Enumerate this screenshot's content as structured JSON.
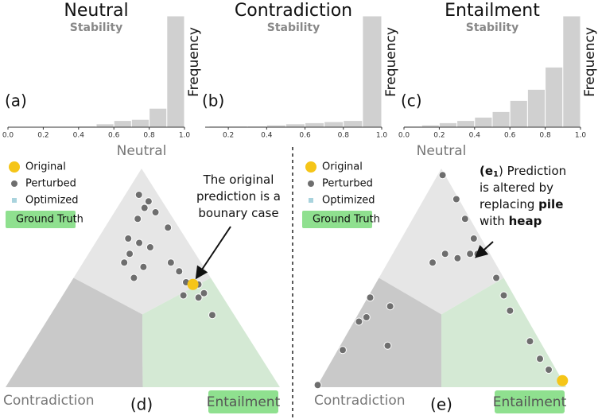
{
  "chart_data": [
    {
      "type": "histogram",
      "title": "Neutral",
      "subtitle": "Stability",
      "panel_label": "(a)",
      "ylabel": "Frequency",
      "bins": [
        0,
        0.1,
        0.2,
        0.3,
        0.4,
        0.5,
        0.6,
        0.7,
        0.8,
        0.9,
        1.0
      ],
      "counts": [
        0,
        0,
        0,
        0,
        1,
        3,
        6,
        7,
        17,
        100
      ],
      "color": "#d0d0d0",
      "xlim": [
        0,
        1.0
      ],
      "ylim": [
        0,
        100
      ],
      "xticks": [
        {
          "value": 0,
          "label": "0.0"
        },
        {
          "value": 0.2,
          "label": "0.2"
        },
        {
          "value": 0.4,
          "label": "0.4"
        },
        {
          "value": 0.6,
          "label": "0.6"
        },
        {
          "value": 0.8,
          "label": "0.8"
        },
        {
          "value": 1.0,
          "label": "1.0"
        }
      ]
    },
    {
      "type": "histogram",
      "title": "Contradiction",
      "subtitle": "Stability",
      "panel_label": "(b)",
      "ylabel": "Frequency",
      "bins": [
        0.1,
        0.2,
        0.3,
        0.4,
        0.5,
        0.6,
        0.7,
        0.8,
        0.9,
        1.0
      ],
      "counts": [
        1,
        1,
        1,
        2,
        3,
        4,
        5,
        6,
        100
      ],
      "color": "#d0d0d0",
      "xlim": [
        0.1,
        1.0
      ],
      "ylim": [
        0,
        100
      ],
      "xticks": [
        0.2,
        0.4,
        0.6,
        0.8,
        {
          "value": 1.0,
          "label": "1.0"
        }
      ]
    },
    {
      "type": "histogram",
      "title": "Entailment",
      "subtitle": "Stability",
      "panel_label": "(c)",
      "ylabel": "Frequency",
      "bins": [
        0,
        0.1,
        0.2,
        0.3,
        0.4,
        0.5,
        0.6,
        0.7,
        0.8,
        0.9,
        1.0
      ],
      "counts": [
        1,
        2,
        4,
        6,
        9,
        14,
        24,
        34,
        54,
        100
      ],
      "color": "#d0d0d0",
      "xlim": [
        0,
        1.0
      ],
      "ylim": [
        0,
        100
      ],
      "xticks": [
        {
          "value": 0,
          "label": "0.0"
        },
        {
          "value": 0.2,
          "label": "0.2"
        },
        {
          "value": 0.4,
          "label": "0.4"
        },
        {
          "value": 0.6,
          "label": "0.6"
        },
        {
          "value": 0.8,
          "label": "0.8"
        },
        {
          "value": 1.0,
          "label": "1.0"
        }
      ]
    },
    {
      "type": "ternary",
      "panel_label": "(d)",
      "vertex_labels": {
        "top": "Neutral",
        "left": "Contradiction",
        "right": "Entailment"
      },
      "region_colors": {
        "top": "#e6e6e6",
        "left": "#c9c9c9",
        "right": "#d4e9d4"
      },
      "legend": [
        {
          "name": "Original",
          "color": "#f5c518"
        },
        {
          "name": "Perturbed",
          "color": "#6e6e6e"
        },
        {
          "name": "Optimized",
          "color": "#a9d3dd"
        },
        {
          "name": "Ground Truth",
          "color": "#8fe08f"
        }
      ],
      "annotation": [
        [
          "The original"
        ],
        [
          "prediction is a"
        ],
        [
          "bounary case"
        ]
      ],
      "points": {
        "neutral": [
          0.88,
          0.85,
          0.82,
          0.8,
          0.77,
          0.73,
          0.68,
          0.66,
          0.61,
          0.64,
          0.57,
          0.55,
          0.53,
          0.48,
          0.47,
          0.42,
          0.41,
          0.43,
          0.5,
          0.33,
          0.57
        ],
        "entailment": [
          0.05,
          0.1,
          0.1,
          0.15,
          0.1,
          0.23,
          0.11,
          0.16,
          0.15,
          0.21,
          0.15,
          0.23,
          0.37,
          0.42,
          0.47,
          0.44,
          0.5,
          0.51,
          0.22,
          0.59,
          0.32
        ]
      },
      "original": {
        "neutral": 0.47,
        "entailment": 0.45
      }
    },
    {
      "type": "ternary",
      "panel_label": "(e)",
      "vertex_labels": {
        "top": "Neutral",
        "left": "Contradiction",
        "right": "Entailment"
      },
      "region_colors": {
        "top": "#e6e6e6",
        "left": "#c9c9c9",
        "right": "#d4e9d4"
      },
      "legend": [
        {
          "name": "Original",
          "color": "#f5c518"
        },
        {
          "name": "Perturbed",
          "color": "#6e6e6e"
        },
        {
          "name": "Optimized",
          "color": "#a9d3dd"
        },
        {
          "name": "Ground Truth",
          "color": "#8fe08f"
        }
      ],
      "annotation": [
        [
          "(e",
          "1",
          ") Prediction"
        ],
        [
          "is altered by"
        ],
        [
          "replacing ",
          "pile"
        ],
        [
          "with ",
          "heap"
        ]
      ],
      "points": {
        "neutral": [
          0.97,
          0.86,
          0.77,
          0.68,
          0.61,
          0.57,
          0.61,
          0.59,
          0.61,
          0.5,
          0.42,
          0.35,
          0.41,
          0.32,
          0.3,
          0.37,
          0.17,
          0.19,
          0.21,
          0.13,
          0.08,
          0.01
        ],
        "entailment": [
          0.02,
          0.13,
          0.21,
          0.29,
          0.34,
          0.18,
          0.21,
          0.27,
          0.31,
          0.47,
          0.54,
          0.6,
          0.01,
          0.04,
          0.02,
          0.11,
          0.02,
          0.19,
          0.75,
          0.83,
          0.89,
          0
        ]
      },
      "original": {
        "neutral": 0.03,
        "entailment": 0.97
      }
    }
  ]
}
